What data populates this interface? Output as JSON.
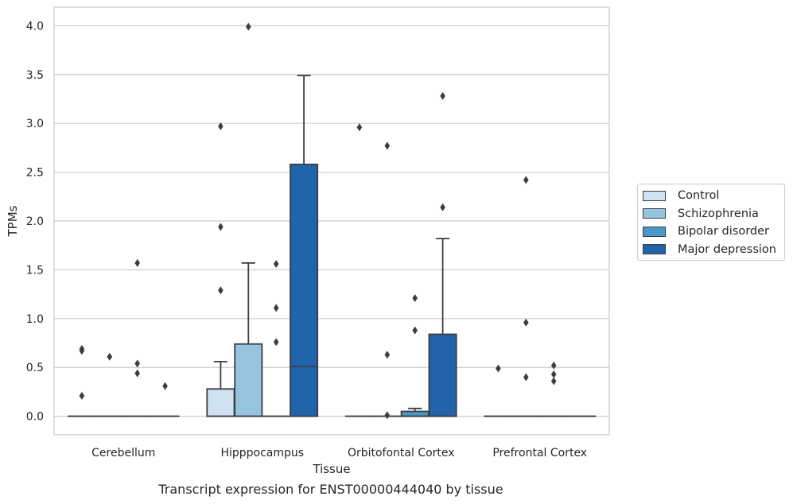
{
  "caption": "Transcript expression for ENST00000444040 by tissue",
  "chart_data": {
    "type": "box",
    "title": "",
    "xlabel": "Tissue",
    "ylabel": "TPMs",
    "ylim": [
      -0.19,
      4.19
    ],
    "yticks": [
      0.0,
      0.5,
      1.0,
      1.5,
      2.0,
      2.5,
      3.0,
      3.5,
      4.0
    ],
    "ytick_labels": [
      "0.0",
      "0.5",
      "1.0",
      "1.5",
      "2.0",
      "2.5",
      "3.0",
      "3.5",
      "4.0"
    ],
    "grid": "horizontal",
    "legend_position": "right",
    "categories": [
      "Cerebellum",
      "Hipppocampus",
      "Orbitofontal Cortex",
      "Prefrontal Cortex"
    ],
    "series": [
      {
        "name": "Control",
        "color": "#d0e1f2",
        "boxes": [
          {
            "q1": 0,
            "median": 0,
            "q3": 0,
            "whisker_low": 0,
            "whisker_high": 0,
            "outliers": [
              0.69,
              0.67,
              0.21
            ]
          },
          {
            "q1": 0,
            "median": 0,
            "q3": 0.28,
            "whisker_low": 0,
            "whisker_high": 0.56,
            "outliers": [
              2.97,
              1.94,
              1.29
            ]
          },
          {
            "q1": 0,
            "median": 0,
            "q3": 0,
            "whisker_low": 0,
            "whisker_high": 0,
            "outliers": [
              2.96
            ]
          },
          {
            "q1": 0,
            "median": 0,
            "q3": 0,
            "whisker_low": 0,
            "whisker_high": 0,
            "outliers": [
              0.49
            ]
          }
        ]
      },
      {
        "name": "Schizophrenia",
        "color": "#94c4df",
        "boxes": [
          {
            "q1": 0,
            "median": 0,
            "q3": 0,
            "whisker_low": 0,
            "whisker_high": 0,
            "outliers": [
              0.61
            ]
          },
          {
            "q1": 0,
            "median": 0,
            "q3": 0.74,
            "whisker_low": 0,
            "whisker_high": 1.57,
            "outliers": [
              3.99
            ]
          },
          {
            "q1": 0,
            "median": 0,
            "q3": 0,
            "whisker_low": 0,
            "whisker_high": 0,
            "outliers": [
              2.77,
              0.63,
              0.01
            ]
          },
          {
            "q1": 0,
            "median": 0,
            "q3": 0,
            "whisker_low": 0,
            "whisker_high": 0,
            "outliers": [
              2.42,
              0.96,
              0.4
            ]
          }
        ]
      },
      {
        "name": "Bipolar disorder",
        "color": "#4a98c9",
        "boxes": [
          {
            "q1": 0,
            "median": 0,
            "q3": 0,
            "whisker_low": 0,
            "whisker_high": 0,
            "outliers": [
              1.57,
              0.54,
              0.44
            ]
          },
          {
            "q1": 0,
            "median": 0,
            "q3": 0,
            "whisker_low": 0,
            "whisker_high": 0,
            "outliers": [
              1.56,
              1.11,
              0.76
            ]
          },
          {
            "q1": 0,
            "median": 0,
            "q3": 0.05,
            "whisker_low": 0,
            "whisker_high": 0.08,
            "outliers": [
              1.21,
              0.88
            ]
          },
          {
            "q1": 0,
            "median": 0,
            "q3": 0,
            "whisker_low": 0,
            "whisker_high": 0,
            "outliers": [
              0.52,
              0.43,
              0.36
            ]
          }
        ]
      },
      {
        "name": "Major depression",
        "color": "#2164ab",
        "boxes": [
          {
            "q1": 0,
            "median": 0,
            "q3": 0,
            "whisker_low": 0,
            "whisker_high": 0,
            "outliers": [
              0.31
            ]
          },
          {
            "q1": 0,
            "median": 0.51,
            "q3": 2.58,
            "whisker_low": 0,
            "whisker_high": 3.49,
            "outliers": []
          },
          {
            "q1": 0,
            "median": 0,
            "q3": 0.84,
            "whisker_low": 0,
            "whisker_high": 1.82,
            "outliers": [
              3.28,
              2.14
            ]
          },
          {
            "q1": 0,
            "median": 0,
            "q3": 0,
            "whisker_low": 0,
            "whisker_high": 0,
            "outliers": []
          }
        ]
      }
    ]
  }
}
